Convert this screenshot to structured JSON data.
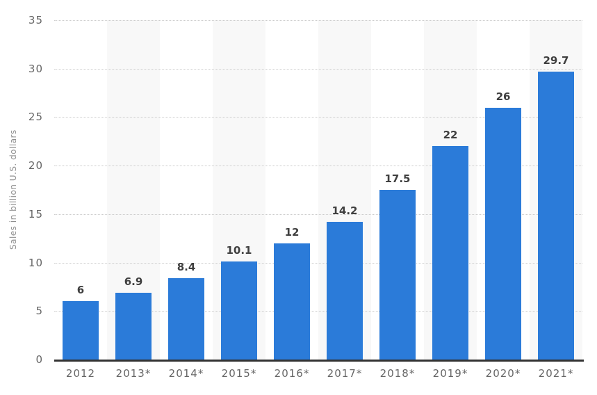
{
  "chart_data": {
    "type": "bar",
    "categories": [
      "2012",
      "2013*",
      "2014*",
      "2015*",
      "2016*",
      "2017*",
      "2018*",
      "2019*",
      "2020*",
      "2021*"
    ],
    "values": [
      6,
      6.9,
      8.4,
      10.1,
      12,
      14.2,
      17.5,
      22,
      26,
      29.7
    ],
    "title": "",
    "xlabel": "",
    "ylabel": "Sales in billion U.S. dollars",
    "ylim": [
      0,
      35
    ],
    "yticks": [
      0,
      5,
      10,
      15,
      20,
      25,
      30,
      35
    ],
    "grid": "horizontal-dotted",
    "legend_position": "none",
    "plot_background": "alternating-vertical-stripes",
    "value_labels_shown": true,
    "colors": {
      "bar": "#2b7bd9",
      "stripe": "#f8f8f8",
      "background": "#ffffff",
      "gridline": "#cccccc",
      "axis_line": "#333333",
      "tick_label": "#666666",
      "value_label": "#3f3f3f",
      "y_axis_title": "#8f8f8f"
    }
  }
}
